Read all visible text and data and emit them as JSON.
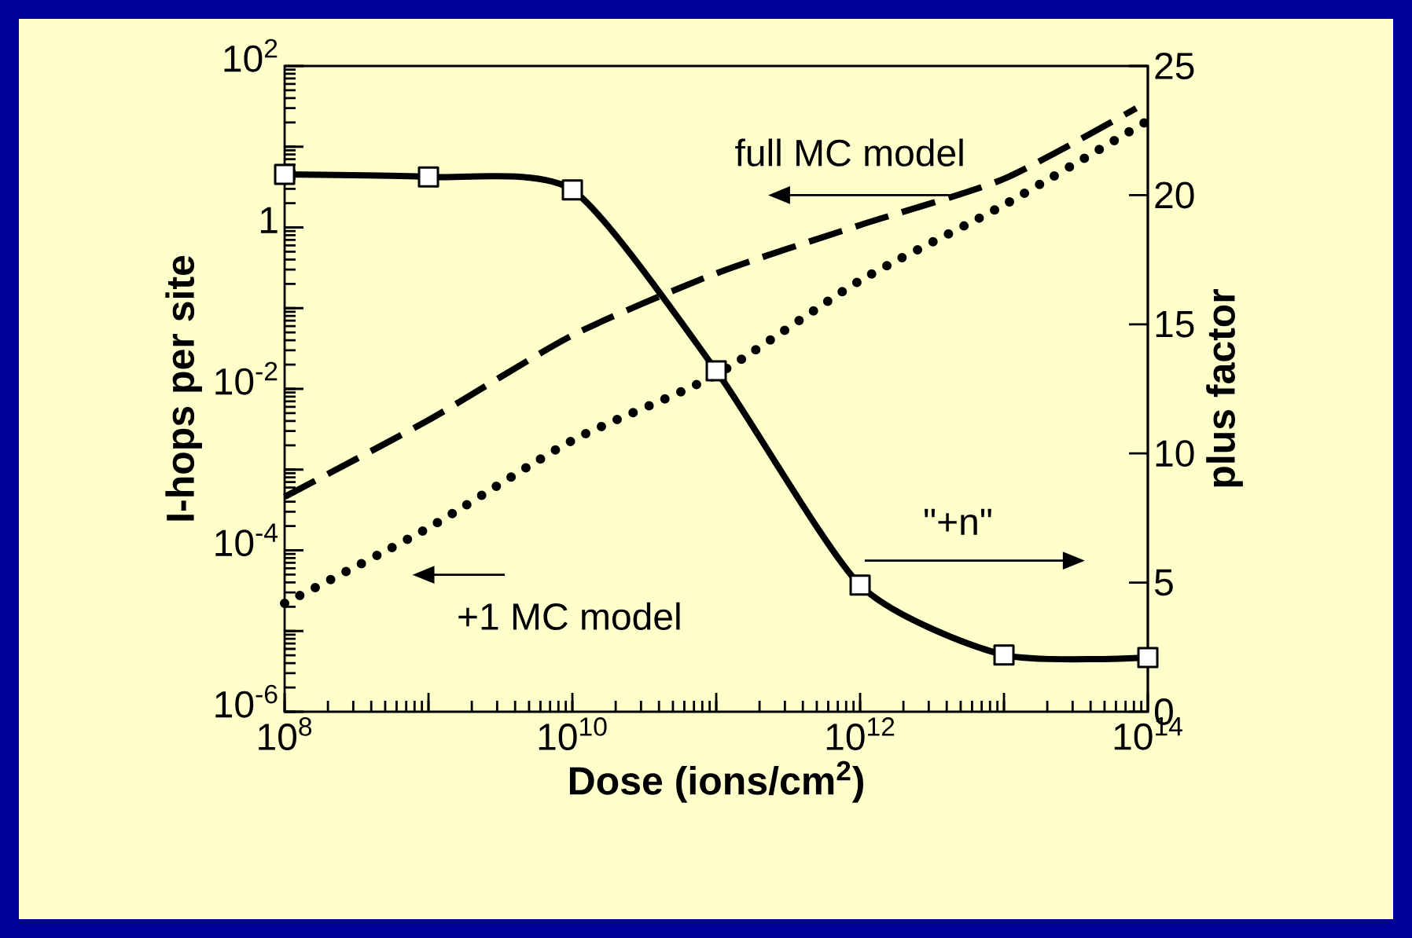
{
  "chart_data": {
    "type": "line",
    "xlabel": "Dose (ions/cm$^{2}$)",
    "ylabel": "I-hops per site",
    "y2label": "plus factor",
    "log": "xy",
    "xlim": [
      100000000.0,
      100000000000000.0
    ],
    "ylim": [
      1e-06,
      100
    ],
    "y2lim": [
      0,
      25
    ],
    "xticks": [
      {
        "value": 100000000.0,
        "label": "10$^{8}$"
      },
      {
        "value": 1000000000.0,
        "label": null
      },
      {
        "value": 10000000000.0,
        "label": "10$^{10}$"
      },
      {
        "value": 100000000000.0,
        "label": null
      },
      {
        "value": 1000000000000.0,
        "label": "10$^{12}$"
      },
      {
        "value": 10000000000000.0,
        "label": null
      },
      {
        "value": 100000000000000.0,
        "label": "10$^{14}$"
      }
    ],
    "yticks": [
      {
        "value": 1e-06,
        "label": "10$^{-6}$"
      },
      {
        "value": 1e-05,
        "label": null
      },
      {
        "value": 0.0001,
        "label": "10$^{-4}$"
      },
      {
        "value": 0.001,
        "label": null
      },
      {
        "value": 0.01,
        "label": "10$^{-2}$"
      },
      {
        "value": 0.1,
        "label": null
      },
      {
        "value": 1,
        "label": "1"
      },
      {
        "value": 10,
        "label": null
      },
      {
        "value": 100,
        "label": "10$^{2}$"
      }
    ],
    "y2ticks": [
      0,
      5,
      10,
      15,
      20,
      25
    ],
    "annotations": [
      "full MC model",
      "\"+n\"",
      "+1 MC  model"
    ],
    "series": [
      {
        "color": "#000000",
        "axis": "y2",
        "marker": "square",
        "line_style": "solid",
        "x": [
          100000000.0,
          1000000000.0,
          10000000000.0,
          100000000000.0,
          1000000000000.0,
          10000000000000.0,
          100000000000000.0
        ],
        "values": [
          20.8,
          20.7,
          20.2,
          13.2,
          4.9,
          2.2,
          2.1
        ]
      },
      {
        "color": "#000000",
        "marker": "none",
        "line_style": "dotted",
        "x": [
          100000000.0,
          1000000000.0,
          10000000000.0,
          100000000000.0,
          1000000000000.0,
          10000000000000.0,
          100000000000000.0
        ],
        "values": [
          2.2e-05,
          0.00019,
          0.0023,
          0.015,
          0.22,
          1.9,
          21
        ]
      },
      {
        "color": "#000000",
        "marker": "none",
        "line_style": "dashed",
        "x": [
          100000000.0,
          1000000000.0,
          10000000000.0,
          100000000000.0,
          1000000000000.0,
          10000000000000.0,
          83000000000000.0
        ],
        "values": [
          0.00046,
          0.0041,
          0.046,
          0.27,
          1.07,
          4,
          30
        ]
      }
    ]
  }
}
